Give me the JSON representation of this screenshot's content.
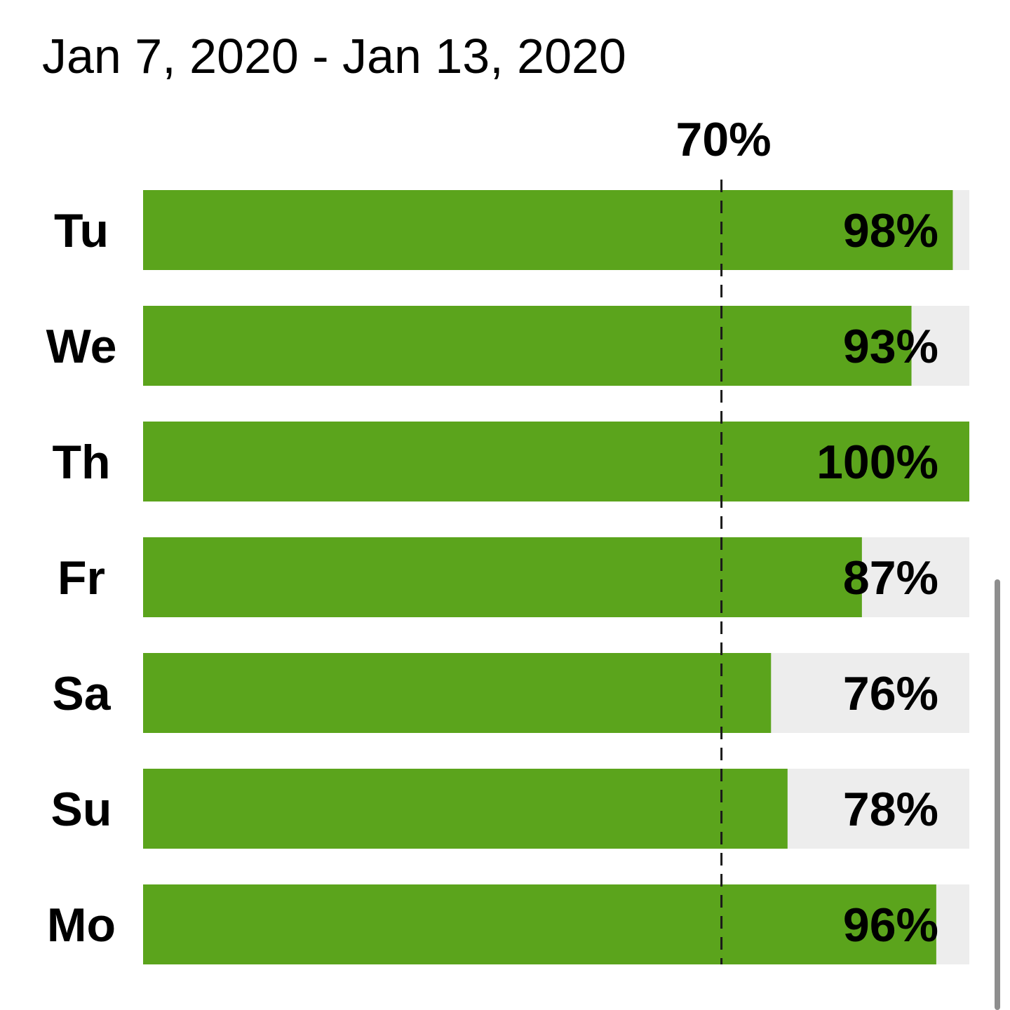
{
  "date_range": "Jan 7, 2020 - Jan 13, 2020",
  "chart_data": {
    "type": "bar",
    "orientation": "horizontal",
    "categories": [
      "Tu",
      "We",
      "Th",
      "Fr",
      "Sa",
      "Su",
      "Mo"
    ],
    "values": [
      98,
      93,
      100,
      87,
      76,
      78,
      96
    ],
    "value_labels": [
      "98%",
      "93%",
      "100%",
      "87%",
      "76%",
      "78%",
      "96%"
    ],
    "xlim": [
      0,
      100
    ],
    "target": {
      "value": 70,
      "label": "70%"
    },
    "grid": false,
    "title": "",
    "xlabel": "",
    "ylabel": ""
  },
  "colors": {
    "bar_fill": "#5ba41c",
    "bar_track": "#ededed",
    "target_line": "#1a1a1a",
    "text": "#000000"
  }
}
